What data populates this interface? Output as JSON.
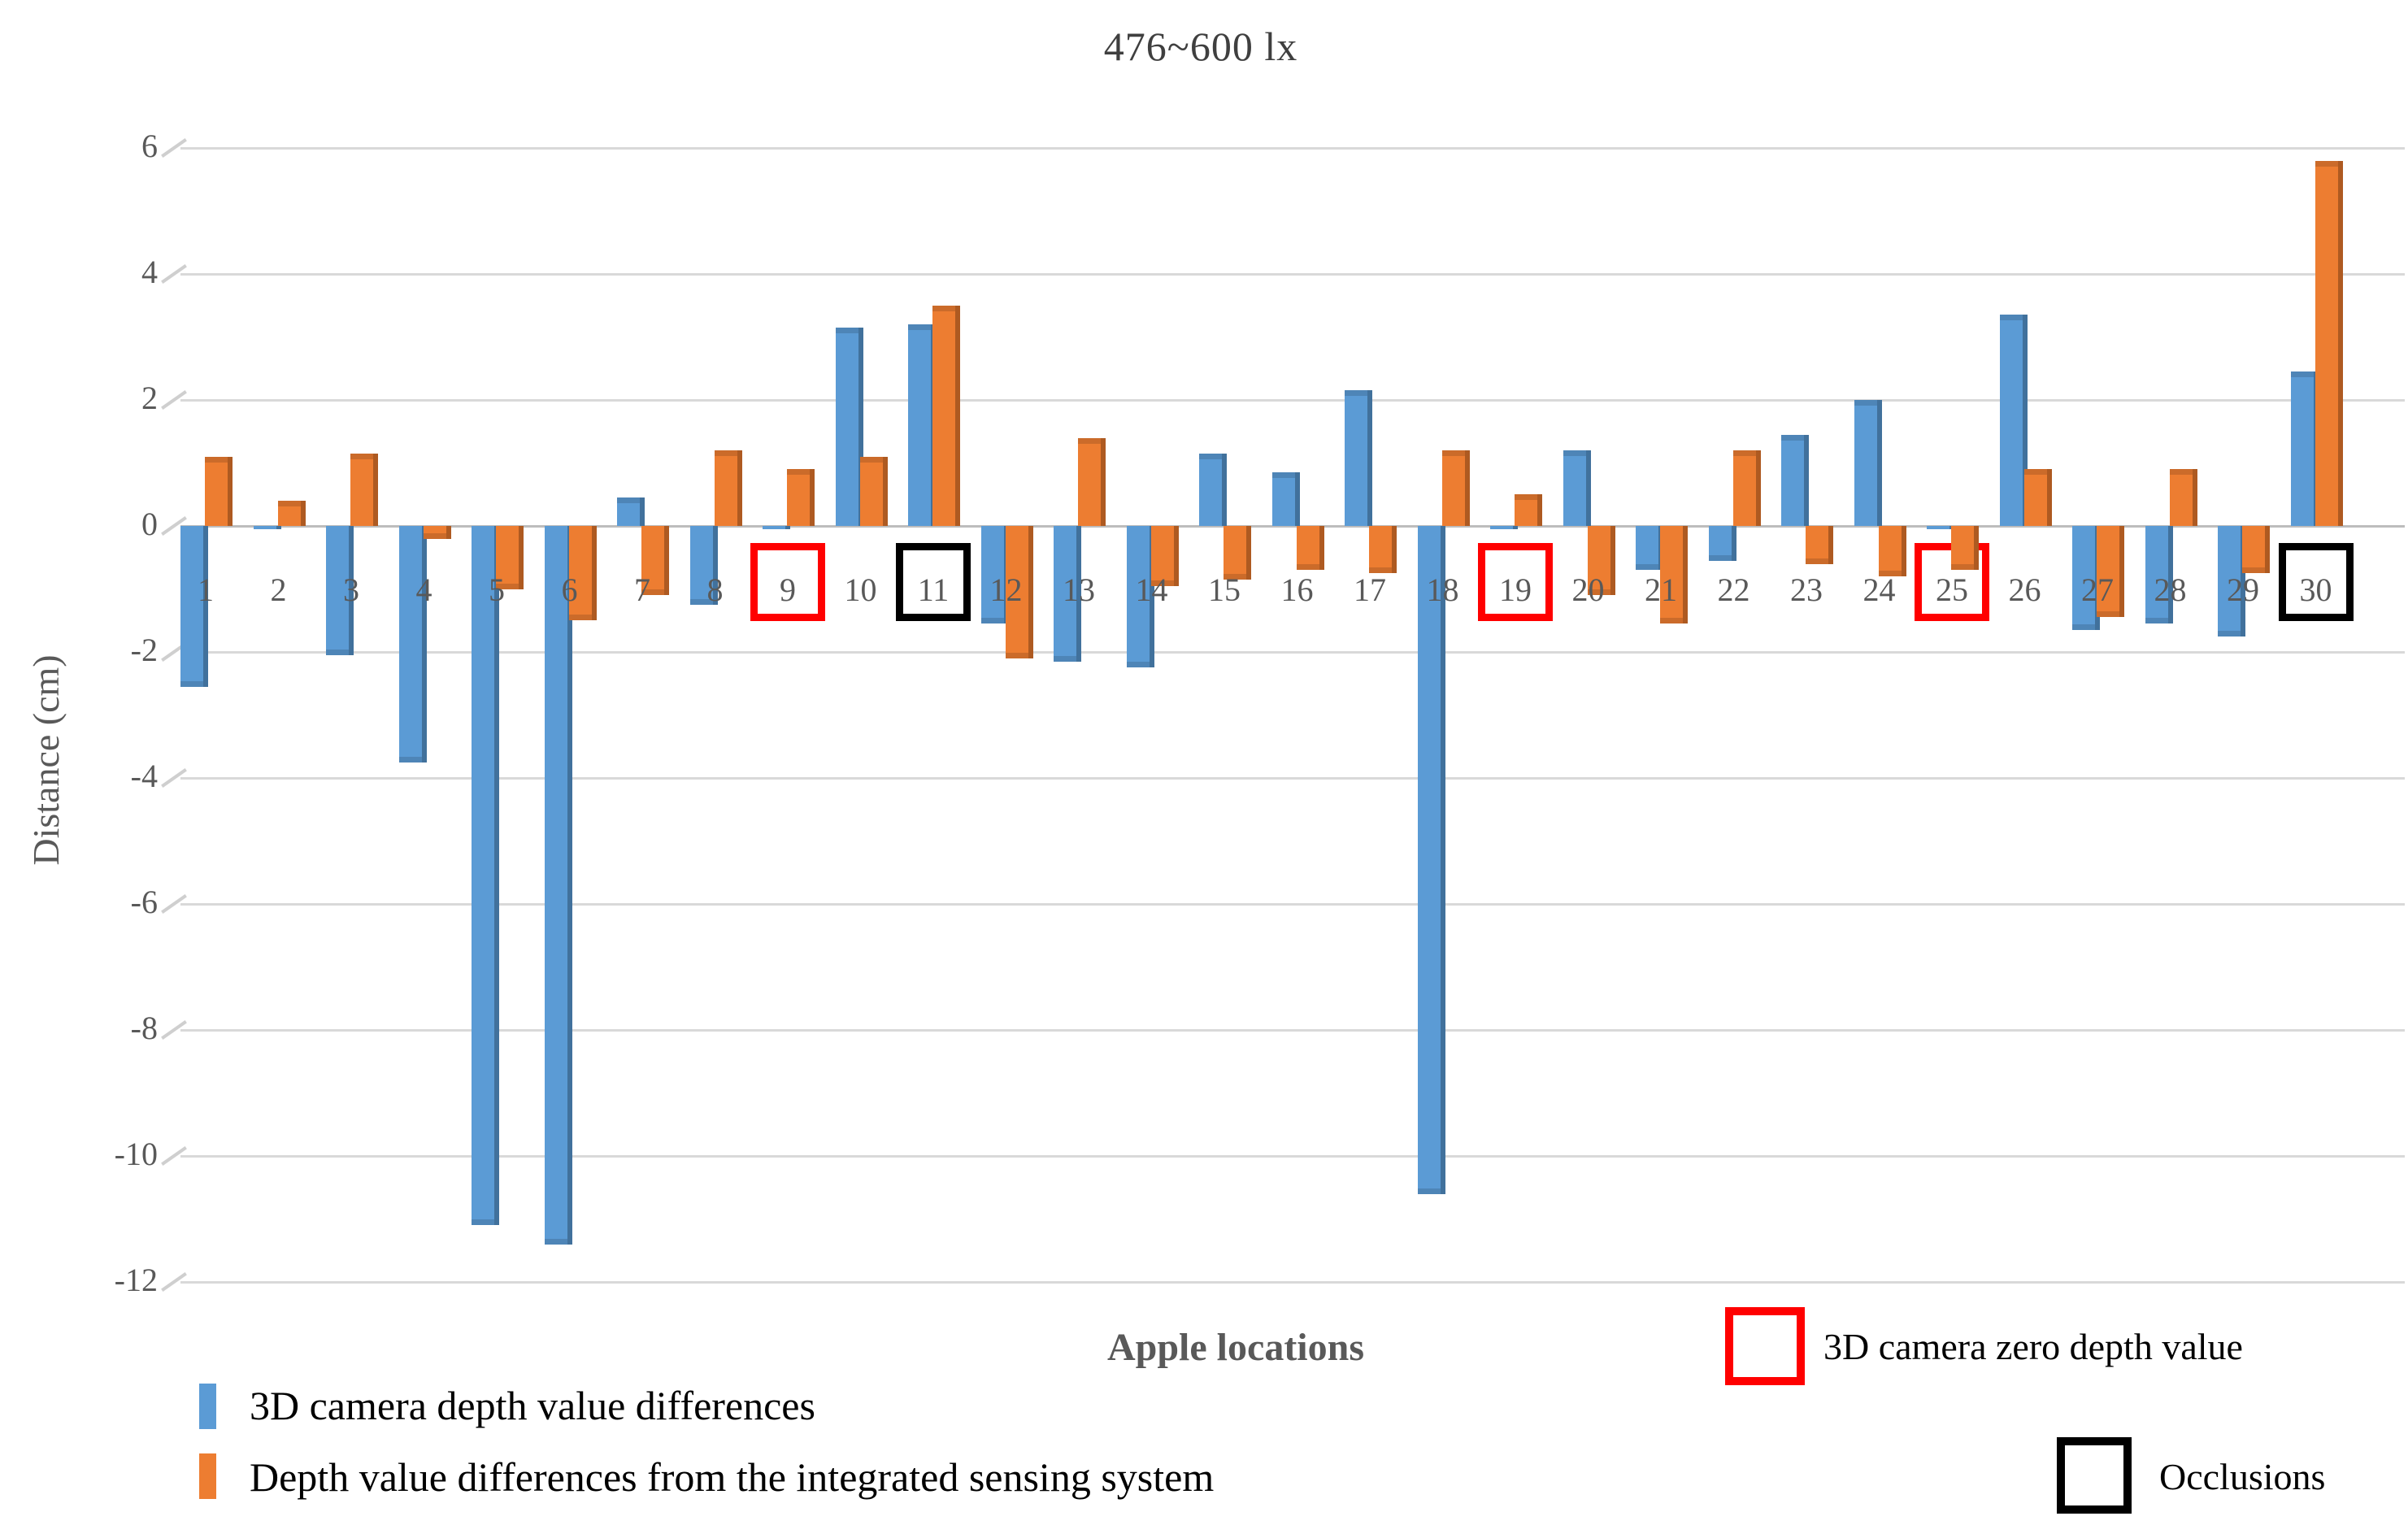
{
  "chart_data": {
    "type": "bar",
    "title": "476~600 lx",
    "xlabel": "Apple locations",
    "ylabel": "Distance (cm)",
    "ylim": [
      -12,
      6
    ],
    "yticks": [
      6,
      4,
      2,
      0,
      -2,
      -4,
      -6,
      -8,
      -10,
      -12
    ],
    "grid": true,
    "legend_position": "bottom-left",
    "categories": [
      "1",
      "2",
      "3",
      "4",
      "5",
      "6",
      "7",
      "8",
      "9",
      "10",
      "11",
      "12",
      "13",
      "14",
      "15",
      "16",
      "17",
      "18",
      "19",
      "20",
      "21",
      "22",
      "23",
      "24",
      "25",
      "26",
      "27",
      "28",
      "29",
      "30"
    ],
    "series": [
      {
        "name": "3D camera depth value differences",
        "color": "#5B9BD5",
        "dark_color": "#41719C",
        "values": [
          -2.55,
          -0.05,
          -2.05,
          -3.75,
          -11.1,
          -11.4,
          0.45,
          -1.25,
          -0.05,
          3.15,
          3.2,
          -1.55,
          -2.15,
          -2.25,
          1.15,
          0.85,
          2.15,
          -10.6,
          -0.05,
          1.2,
          -0.7,
          -0.55,
          1.45,
          2.0,
          -0.05,
          3.35,
          -1.65,
          -1.55,
          -1.75,
          2.45
        ]
      },
      {
        "name": "Depth value differences from the integrated sensing system",
        "color": "#ED7D31",
        "dark_color": "#AE5A21",
        "values": [
          1.1,
          0.4,
          1.15,
          -0.2,
          -1.0,
          -1.5,
          -1.1,
          1.2,
          0.9,
          1.1,
          3.5,
          -2.1,
          1.4,
          -0.95,
          -0.85,
          -0.7,
          -0.75,
          1.2,
          0.5,
          -1.1,
          -1.55,
          1.2,
          -0.6,
          -0.8,
          -0.7,
          0.9,
          -1.45,
          0.9,
          -0.75,
          5.8
        ]
      }
    ],
    "highlight_boxes": [
      {
        "category": "9",
        "color": "#FF0000"
      },
      {
        "category": "19",
        "color": "#FF0000"
      },
      {
        "category": "25",
        "color": "#FF0000"
      },
      {
        "category": "11",
        "color": "#000000"
      },
      {
        "category": "30",
        "color": "#000000"
      }
    ],
    "highlight_legend": [
      {
        "label": "3D camera zero depth value",
        "color": "#FF0000"
      },
      {
        "label": "Occlusions",
        "color": "#000000"
      }
    ],
    "axis_text_color": "#595959",
    "grid_color": "#D9D9D9",
    "zero_line_color": "#BDBDBD",
    "title_color": "#3F3F3F"
  }
}
